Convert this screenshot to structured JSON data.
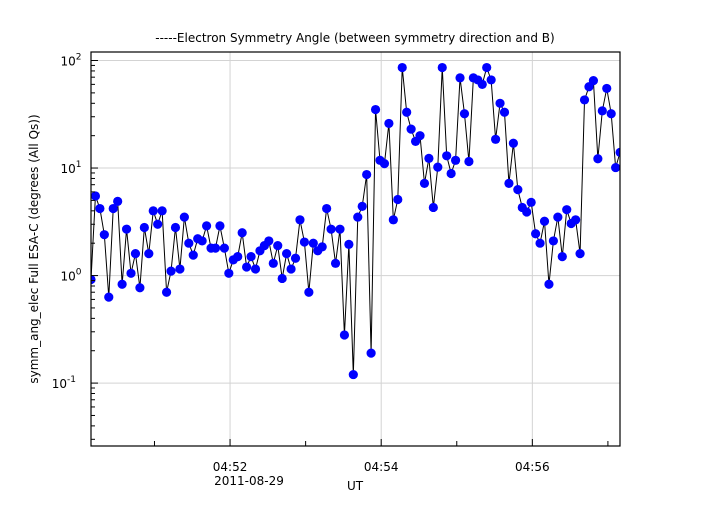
{
  "chart_data": {
    "type": "line",
    "title": "-----Electron Symmetry Angle (between symmetry direction and B)",
    "ylabel": "symm_ang_elec Full ESA-C (degrees (All Qs))",
    "xlabel": "UT",
    "date_label": "2011-08-29",
    "yscale": "log",
    "ylim": [
      0.026,
      120
    ],
    "y_ticks": [
      {
        "value": 0.1,
        "base": "10",
        "exp": "-1"
      },
      {
        "value": 1,
        "base": "10",
        "exp": "0"
      },
      {
        "value": 10,
        "base": "10",
        "exp": "1"
      },
      {
        "value": 100,
        "base": "10",
        "exp": "2"
      }
    ],
    "xlim_seconds": [
      29409.6,
      29829.6
    ],
    "x_major_ticks": [
      {
        "seconds": 29520,
        "label": "04:52"
      },
      {
        "seconds": 29640,
        "label": "04:54"
      },
      {
        "seconds": 29760,
        "label": "04:56"
      }
    ],
    "x_minor_ticks_seconds": [
      29460,
      29580,
      29700,
      29820
    ],
    "grid": true,
    "marker_color": "#0000ff",
    "line_color": "#000000",
    "t_start_seconds": 29409.6,
    "dt_seconds": 3.53,
    "values": [
      0.92,
      5.5,
      4.2,
      2.4,
      0.63,
      4.2,
      4.9,
      0.83,
      2.7,
      1.05,
      1.6,
      0.77,
      2.8,
      1.6,
      4.0,
      3.0,
      4.0,
      0.7,
      1.1,
      2.8,
      1.15,
      3.5,
      2.0,
      1.55,
      2.2,
      2.1,
      2.9,
      1.8,
      1.8,
      2.9,
      1.8,
      1.05,
      1.4,
      1.5,
      2.5,
      1.2,
      1.5,
      1.15,
      1.7,
      1.9,
      2.1,
      1.3,
      1.9,
      0.94,
      1.6,
      1.15,
      1.45,
      3.3,
      2.05,
      0.7,
      2.0,
      1.7,
      1.85,
      4.2,
      2.7,
      1.3,
      2.7,
      0.28,
      1.95,
      0.12,
      3.5,
      4.4,
      8.7,
      0.19,
      35,
      11.8,
      11,
      26,
      3.3,
      5.1,
      86,
      33,
      23,
      17.7,
      20,
      7.2,
      12.3,
      4.3,
      10.2,
      86,
      13,
      8.9,
      11.8,
      69,
      32,
      11.5,
      69,
      66,
      60,
      86,
      66,
      18.5,
      40,
      33,
      7.2,
      17,
      6.3,
      4.3,
      3.9,
      4.8,
      2.45,
      2.0,
      3.2,
      0.83,
      2.1,
      3.5,
      1.5,
      4.1,
      3.05,
      3.3,
      1.6,
      43,
      57,
      65,
      12.2,
      34,
      55,
      32,
      10.1,
      14
    ]
  }
}
